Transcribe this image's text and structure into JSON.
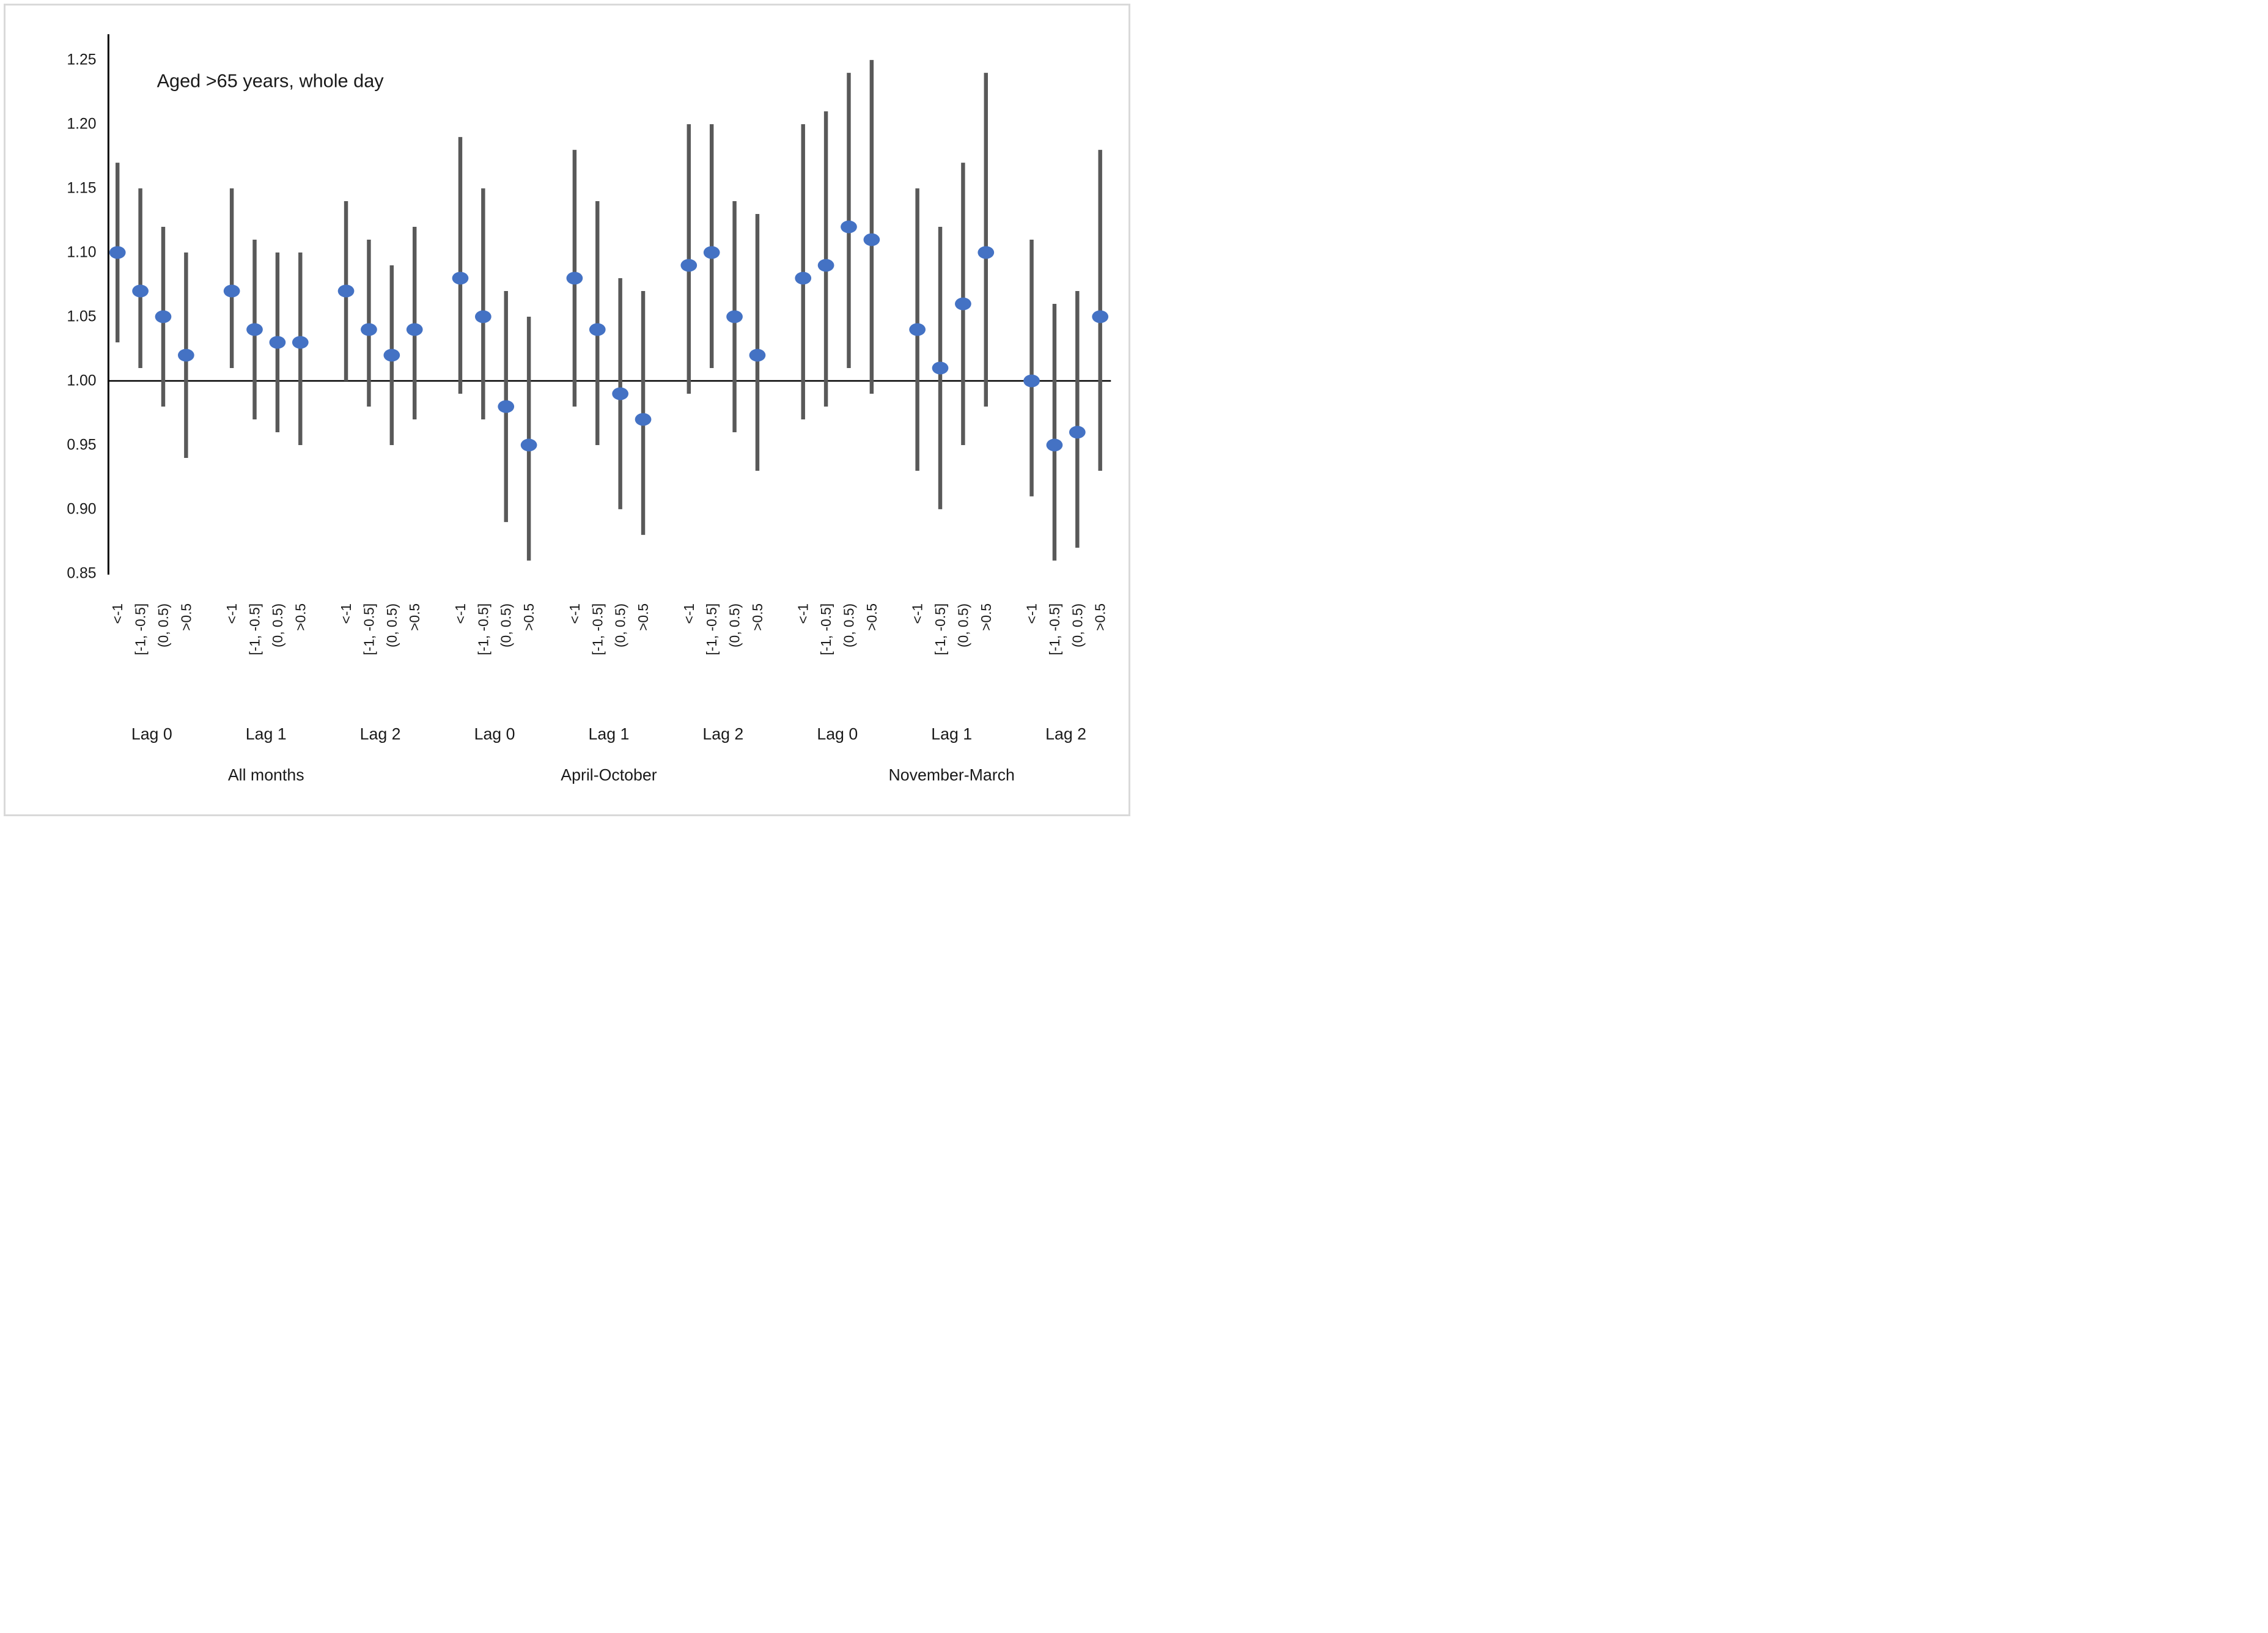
{
  "chart": {
    "title": "Aged >65 years, whole day",
    "y_axis": {
      "tick_labels": [
        "1.25",
        "1.20",
        "1.15",
        "1.10",
        "1.05",
        "1.00",
        "0.95",
        "0.90",
        "0.85"
      ],
      "min": 0.85,
      "max": 1.25,
      "step": 0.05,
      "reference_value": 1.0
    },
    "colors": {
      "point": "#4472C4",
      "error_bar": "#595959",
      "axis": "#000000",
      "reference_line": "#000000",
      "border": "#D9D9D9",
      "text": "#1A1A1A"
    }
  },
  "chart_data": {
    "type": "scatter",
    "title": "Aged >65 years, whole day",
    "xlabel": "",
    "ylabel": "",
    "ylim": [
      0.85,
      1.25
    ],
    "y_ticks": [
      0.85,
      0.9,
      0.95,
      1.0,
      1.05,
      1.1,
      1.15,
      1.2,
      1.25
    ],
    "grid": false,
    "legend": false,
    "reference_line": 1.0,
    "x_category_labels": [
      "<-1",
      "[-1, -0.5]",
      "(0, 0.5)",
      ">0.5"
    ],
    "point_style": "filled-circle-with-vertical-ci-bar",
    "sections": [
      {
        "label": "All months",
        "lags": [
          {
            "label": "Lag 0",
            "points": [
              {
                "cat": "<-1",
                "est": 1.1,
                "lo": 1.03,
                "hi": 1.17
              },
              {
                "cat": "[-1, -0.5]",
                "est": 1.07,
                "lo": 1.01,
                "hi": 1.15
              },
              {
                "cat": "(0, 0.5)",
                "est": 1.05,
                "lo": 0.98,
                "hi": 1.12
              },
              {
                "cat": ">0.5",
                "est": 1.02,
                "lo": 0.94,
                "hi": 1.1
              }
            ]
          },
          {
            "label": "Lag 1",
            "points": [
              {
                "cat": "<-1",
                "est": 1.07,
                "lo": 1.01,
                "hi": 1.15
              },
              {
                "cat": "[-1, -0.5]",
                "est": 1.04,
                "lo": 0.97,
                "hi": 1.11
              },
              {
                "cat": "(0, 0.5)",
                "est": 1.03,
                "lo": 0.96,
                "hi": 1.1
              },
              {
                "cat": ">0.5",
                "est": 1.03,
                "lo": 0.95,
                "hi": 1.1
              }
            ]
          },
          {
            "label": "Lag 2",
            "points": [
              {
                "cat": "<-1",
                "est": 1.07,
                "lo": 1.0,
                "hi": 1.14
              },
              {
                "cat": "[-1, -0.5]",
                "est": 1.04,
                "lo": 0.98,
                "hi": 1.11
              },
              {
                "cat": "(0, 0.5)",
                "est": 1.02,
                "lo": 0.95,
                "hi": 1.09
              },
              {
                "cat": ">0.5",
                "est": 1.04,
                "lo": 0.97,
                "hi": 1.12
              }
            ]
          }
        ]
      },
      {
        "label": "April-October",
        "lags": [
          {
            "label": "Lag 0",
            "points": [
              {
                "cat": "<-1",
                "est": 1.08,
                "lo": 0.99,
                "hi": 1.19
              },
              {
                "cat": "[-1, -0.5]",
                "est": 1.05,
                "lo": 0.97,
                "hi": 1.15
              },
              {
                "cat": "(0, 0.5)",
                "est": 0.98,
                "lo": 0.89,
                "hi": 1.07
              },
              {
                "cat": ">0.5",
                "est": 0.95,
                "lo": 0.86,
                "hi": 1.05
              }
            ]
          },
          {
            "label": "Lag 1",
            "points": [
              {
                "cat": "<-1",
                "est": 1.08,
                "lo": 0.98,
                "hi": 1.18
              },
              {
                "cat": "[-1, -0.5]",
                "est": 1.04,
                "lo": 0.95,
                "hi": 1.14
              },
              {
                "cat": "(0, 0.5)",
                "est": 0.99,
                "lo": 0.9,
                "hi": 1.08
              },
              {
                "cat": ">0.5",
                "est": 0.97,
                "lo": 0.88,
                "hi": 1.07
              }
            ]
          },
          {
            "label": "Lag 2",
            "points": [
              {
                "cat": "<-1",
                "est": 1.09,
                "lo": 0.99,
                "hi": 1.2
              },
              {
                "cat": "[-1, -0.5]",
                "est": 1.1,
                "lo": 1.01,
                "hi": 1.2
              },
              {
                "cat": "(0, 0.5)",
                "est": 1.05,
                "lo": 0.96,
                "hi": 1.14
              },
              {
                "cat": ">0.5",
                "est": 1.02,
                "lo": 0.93,
                "hi": 1.13
              }
            ]
          }
        ]
      },
      {
        "label": "November-March",
        "lags": [
          {
            "label": "Lag 0",
            "points": [
              {
                "cat": "<-1",
                "est": 1.08,
                "lo": 0.97,
                "hi": 1.2
              },
              {
                "cat": "[-1, -0.5]",
                "est": 1.09,
                "lo": 0.98,
                "hi": 1.21
              },
              {
                "cat": "(0, 0.5)",
                "est": 1.12,
                "lo": 1.01,
                "hi": 1.24
              },
              {
                "cat": ">0.5",
                "est": 1.11,
                "lo": 0.99,
                "hi": 1.25
              }
            ]
          },
          {
            "label": "Lag 1",
            "points": [
              {
                "cat": "<-1",
                "est": 1.04,
                "lo": 0.93,
                "hi": 1.15
              },
              {
                "cat": "[-1, -0.5]",
                "est": 1.01,
                "lo": 0.9,
                "hi": 1.12
              },
              {
                "cat": "(0, 0.5)",
                "est": 1.06,
                "lo": 0.95,
                "hi": 1.17
              },
              {
                "cat": ">0.5",
                "est": 1.1,
                "lo": 0.98,
                "hi": 1.24
              }
            ]
          },
          {
            "label": "Lag 2",
            "points": [
              {
                "cat": "<-1",
                "est": 1.0,
                "lo": 0.91,
                "hi": 1.11
              },
              {
                "cat": "[-1, -0.5]",
                "est": 0.95,
                "lo": 0.86,
                "hi": 1.06
              },
              {
                "cat": "(0, 0.5)",
                "est": 0.96,
                "lo": 0.87,
                "hi": 1.07
              },
              {
                "cat": ">0.5",
                "est": 1.05,
                "lo": 0.93,
                "hi": 1.18
              }
            ]
          }
        ]
      }
    ]
  }
}
